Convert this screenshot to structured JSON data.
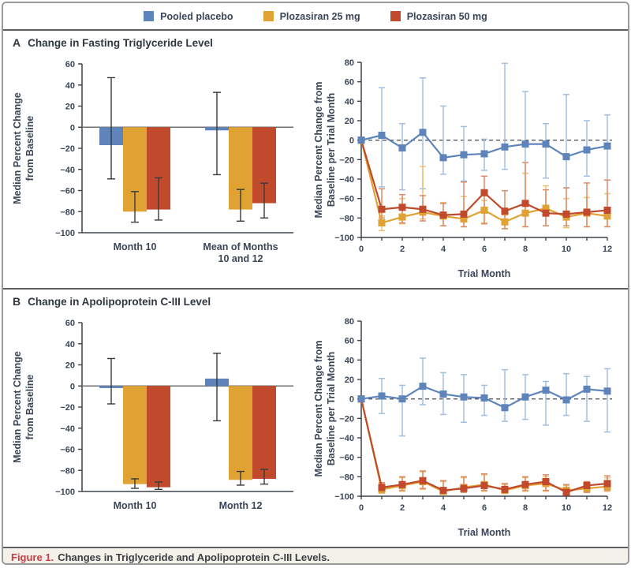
{
  "legend": {
    "items": [
      {
        "label": "Pooled placebo",
        "color": "placebo"
      },
      {
        "label": "Plozasiran 25 mg",
        "color": "p25"
      },
      {
        "label": "Plozasiran 50 mg",
        "color": "p50"
      }
    ]
  },
  "panels": {
    "a": {
      "letter": "A",
      "title": "Change in Fasting Triglyceride Level"
    },
    "b": {
      "letter": "B",
      "title": "Change in Apolipoprotein C-III Level"
    }
  },
  "caption": {
    "figure_label": "Figure 1.",
    "text": "Changes in Triglyceride and Apolipoprotein C-III Levels."
  },
  "colors": {
    "placebo": "#5e84bb",
    "p25": "#dfa233",
    "p50": "#c04a2b",
    "placebo_light": "#a3bfe0",
    "p25_light": "#edc373",
    "p50_light": "#dc8b66",
    "error_dark": "#3a3a3a",
    "axis": "#3d434b",
    "zero_line": "#707070",
    "dashed_zero": "#55585c"
  },
  "chart_data": [
    {
      "id": "a_bar",
      "type": "bar",
      "ylabel_lines": [
        "Median Percent Change",
        "from Baseline"
      ],
      "ylim": [
        -100,
        60
      ],
      "ytick_step": 20,
      "categories": [
        "Month 10",
        "Mean of Months\n10 and 12"
      ],
      "series": [
        {
          "name": "Pooled placebo",
          "color": "placebo",
          "values": [
            -17,
            -3
          ],
          "err_hi": [
            47,
            33
          ],
          "err_lo": [
            -49,
            -45
          ]
        },
        {
          "name": "Plozasiran 25 mg",
          "color": "p25",
          "values": [
            -80,
            -78
          ],
          "err_hi": [
            -61,
            -59
          ],
          "err_lo": [
            -90,
            -89
          ]
        },
        {
          "name": "Plozasiran 50 mg",
          "color": "p50",
          "values": [
            -78,
            -72
          ],
          "err_hi": [
            -48,
            -53
          ],
          "err_lo": [
            -88,
            -86
          ]
        }
      ]
    },
    {
      "id": "a_line",
      "type": "line",
      "ylabel_lines": [
        "Median Percent Change from",
        "Baseline per Trial Month"
      ],
      "xlabel": "Trial Month",
      "ylim": [
        -100,
        80
      ],
      "ytick_step": 20,
      "xlim": [
        0,
        12
      ],
      "x": [
        0,
        1,
        2,
        3,
        4,
        5,
        6,
        7,
        8,
        9,
        10,
        11,
        12
      ],
      "xticks_labeled": [
        0,
        2,
        4,
        6,
        8,
        10,
        12
      ],
      "series": [
        {
          "name": "Pooled placebo",
          "color": "placebo",
          "values": [
            0,
            5,
            -8,
            8,
            -18,
            -15,
            -14,
            -7,
            -4,
            -4,
            -17,
            -10,
            -6
          ],
          "err_hi": [
            0,
            54,
            17,
            64,
            35,
            14,
            1,
            79,
            50,
            17,
            47,
            20,
            26
          ],
          "err_lo": [
            0,
            -48,
            -51,
            -50,
            -35,
            -42,
            -31,
            -30,
            -34,
            -39,
            -49,
            -37,
            -41
          ]
        },
        {
          "name": "Plozasiran 25 mg",
          "color": "p25",
          "values": [
            0,
            -85,
            -79,
            -74,
            -78,
            -81,
            -72,
            -84,
            -75,
            -70,
            -79,
            -75,
            -78
          ],
          "err_hi": [
            0,
            -78,
            -60,
            -27,
            -64,
            -58,
            -62,
            -77,
            -34,
            -47,
            -60,
            -59,
            -55
          ],
          "err_lo": [
            0,
            -93,
            -86,
            -81,
            -88,
            -89,
            -85,
            -91,
            -89,
            -88,
            -90,
            -89,
            -89
          ]
        },
        {
          "name": "Plozasiran 50 mg",
          "color": "p50",
          "values": [
            0,
            -71,
            -69,
            -71,
            -77,
            -76,
            -54,
            -73,
            -65,
            -75,
            -76,
            -74,
            -72
          ],
          "err_hi": [
            0,
            -50,
            -56,
            -57,
            -65,
            -43,
            -37,
            -52,
            -23,
            -51,
            -49,
            -44,
            -41
          ],
          "err_lo": [
            0,
            -80,
            -85,
            -83,
            -88,
            -89,
            -86,
            -91,
            -89,
            -88,
            -88,
            -89,
            -89
          ]
        }
      ]
    },
    {
      "id": "b_bar",
      "type": "bar",
      "ylabel_lines": [
        "Median Percent Change",
        "from Baseline"
      ],
      "ylim": [
        -100,
        60
      ],
      "ytick_step": 20,
      "categories": [
        "Month 10",
        "Month 12"
      ],
      "series": [
        {
          "name": "Pooled placebo",
          "color": "placebo",
          "values": [
            -2,
            7
          ],
          "err_hi": [
            26,
            31
          ],
          "err_lo": [
            -17,
            -33
          ]
        },
        {
          "name": "Plozasiran 25 mg",
          "color": "p25",
          "values": [
            -93,
            -89
          ],
          "err_hi": [
            -88,
            -81
          ],
          "err_lo": [
            -97,
            -94
          ]
        },
        {
          "name": "Plozasiran 50 mg",
          "color": "p50",
          "values": [
            -96,
            -88
          ],
          "err_hi": [
            -91,
            -79
          ],
          "err_lo": [
            -98,
            -93
          ]
        }
      ]
    },
    {
      "id": "b_line",
      "type": "line",
      "ylabel_lines": [
        "Median Percent Change from",
        "Baseline per Trial Month"
      ],
      "xlabel": "Trial Month",
      "ylim": [
        -100,
        80
      ],
      "ytick_step": 20,
      "xlim": [
        0,
        12
      ],
      "x": [
        0,
        1,
        2,
        3,
        4,
        5,
        6,
        7,
        8,
        9,
        10,
        11,
        12
      ],
      "xticks_labeled": [
        0,
        2,
        4,
        6,
        8,
        10,
        12
      ],
      "series": [
        {
          "name": "Pooled placebo",
          "color": "placebo",
          "values": [
            0,
            3,
            0,
            13,
            5,
            2,
            1,
            -9,
            2,
            9,
            -1,
            10,
            8
          ],
          "err_hi": [
            0,
            21,
            14,
            42,
            27,
            25,
            14,
            30,
            25,
            18,
            26,
            23,
            31
          ],
          "err_lo": [
            0,
            -15,
            -38,
            -6,
            -16,
            -24,
            -17,
            -23,
            -21,
            -27,
            -17,
            -23,
            -34
          ]
        },
        {
          "name": "Plozasiran 25 mg",
          "color": "p25",
          "values": [
            0,
            -93,
            -89,
            -85,
            -95,
            -91,
            -88,
            -94,
            -89,
            -87,
            -94,
            -92,
            -90
          ],
          "err_hi": [
            0,
            -87,
            -81,
            -75,
            -85,
            -81,
            -78,
            -88,
            -81,
            -80,
            -89,
            -86,
            -81
          ],
          "err_lo": [
            0,
            -97,
            -95,
            -93,
            -98,
            -96,
            -95,
            -97,
            -95,
            -95,
            -99,
            -96,
            -95
          ]
        },
        {
          "name": "Plozasiran 50 mg",
          "color": "p50",
          "values": [
            0,
            -91,
            -88,
            -84,
            -94,
            -92,
            -89,
            -93,
            -88,
            -85,
            -96,
            -89,
            -87
          ],
          "err_hi": [
            0,
            -86,
            -80,
            -74,
            -84,
            -80,
            -77,
            -87,
            -80,
            -78,
            -88,
            -85,
            -79
          ],
          "err_lo": [
            0,
            -96,
            -94,
            -92,
            -97,
            -96,
            -94,
            -97,
            -94,
            -94,
            -99,
            -96,
            -94
          ]
        }
      ]
    }
  ]
}
